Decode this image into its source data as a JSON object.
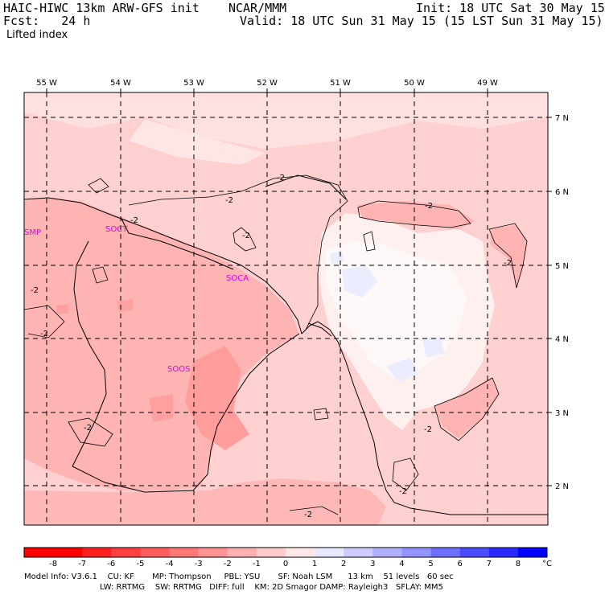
{
  "header": {
    "model": "HAIC-HIWC 13km ARW-GFS init    NCAR/MMM",
    "init": "Init: 18 UTC Sat 30 May 15",
    "fcst": "Fcst:   24 h",
    "valid": "Valid: 18 UTC Sun 31 May 15 (15 LST Sun 31 May 15)",
    "field": "Lifted index"
  },
  "map": {
    "lon_labels": [
      "55 W",
      "54 W",
      "53 W",
      "52 W",
      "51 W",
      "50 W",
      "49 W"
    ],
    "lat_labels": [
      "7 N",
      "6 N",
      "5 N",
      "4 N",
      "3 N",
      "2 N"
    ],
    "cities": [
      "SMP",
      "SOCT",
      "SOCA",
      "SOOS"
    ],
    "contour_label": "-2"
  },
  "colorbar": {
    "labels": [
      "-8",
      "-7",
      "-6",
      "-5",
      "-4",
      "-3",
      "-2",
      "-1",
      "0",
      "1",
      "2",
      "3",
      "4",
      "5",
      "6",
      "7",
      "8"
    ],
    "unit": "°C",
    "colors": [
      "#ff0000",
      "#ff2020",
      "#ff4040",
      "#ff5c5c",
      "#ff7878",
      "#ff9494",
      "#ffb0b0",
      "#ffcccc",
      "#ffe8e8",
      "#e8e8ff",
      "#ccccff",
      "#b0b0ff",
      "#9494ff",
      "#7070ff",
      "#4c4cff",
      "#2828ff",
      "#0000ff"
    ]
  },
  "footer": {
    "line1": "Model Info: V3.6.1    CU: KF       MP: Thompson     PBL: YSU       SF: Noah LSM      13 km    51 levels   60 sec",
    "line2": "LW: RRTMG    SW: RRTMG   DIFF: full    KM: 2D Smagor DAMP: Rayleigh3   SFLAY: MM5"
  }
}
